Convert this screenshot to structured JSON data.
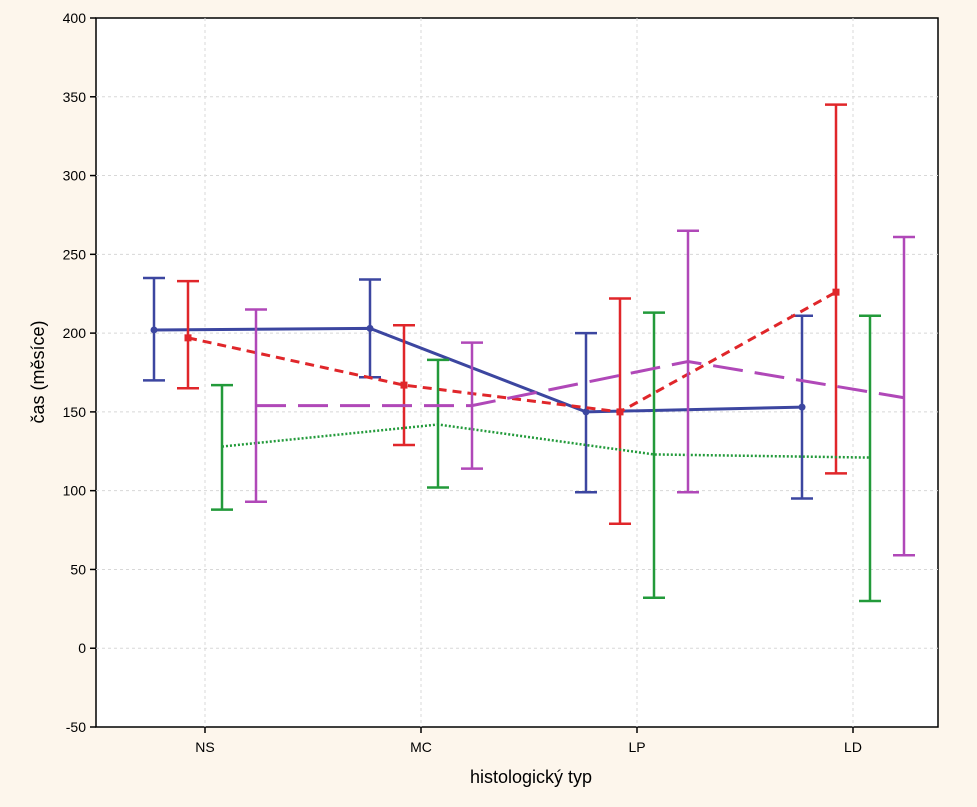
{
  "chart_data": {
    "type": "line",
    "title": "",
    "xlabel": "histologický typ",
    "ylabel": "čas (měsíce)",
    "categories": [
      "NS",
      "MC",
      "LP",
      "LD"
    ],
    "ylim": [
      -50,
      400
    ],
    "yticks": [
      -50,
      0,
      50,
      100,
      150,
      200,
      250,
      300,
      350,
      400
    ],
    "grid": true,
    "legend": "none",
    "series": [
      {
        "color": "#3c46a0",
        "style": "solid",
        "marker": "circle",
        "values": [
          202,
          203,
          150,
          153
        ],
        "lower": [
          170,
          172,
          99,
          95
        ],
        "upper": [
          235,
          234,
          200,
          211
        ]
      },
      {
        "color": "#e0262a",
        "style": "dashed",
        "marker": "square",
        "values": [
          197,
          167,
          150,
          226
        ],
        "lower": [
          165,
          129,
          79,
          111
        ],
        "upper": [
          233,
          205,
          222,
          345
        ]
      },
      {
        "color": "#229a3a",
        "style": "dotted",
        "marker": "none",
        "values": [
          128,
          142,
          123,
          121
        ],
        "lower": [
          88,
          102,
          32,
          30
        ],
        "upper": [
          167,
          183,
          213,
          211
        ]
      },
      {
        "color": "#b048b8",
        "style": "longdash",
        "marker": "none",
        "values": [
          154,
          154,
          182,
          159
        ],
        "lower": [
          93,
          114,
          99,
          59
        ],
        "upper": [
          215,
          194,
          265,
          261
        ]
      }
    ]
  }
}
